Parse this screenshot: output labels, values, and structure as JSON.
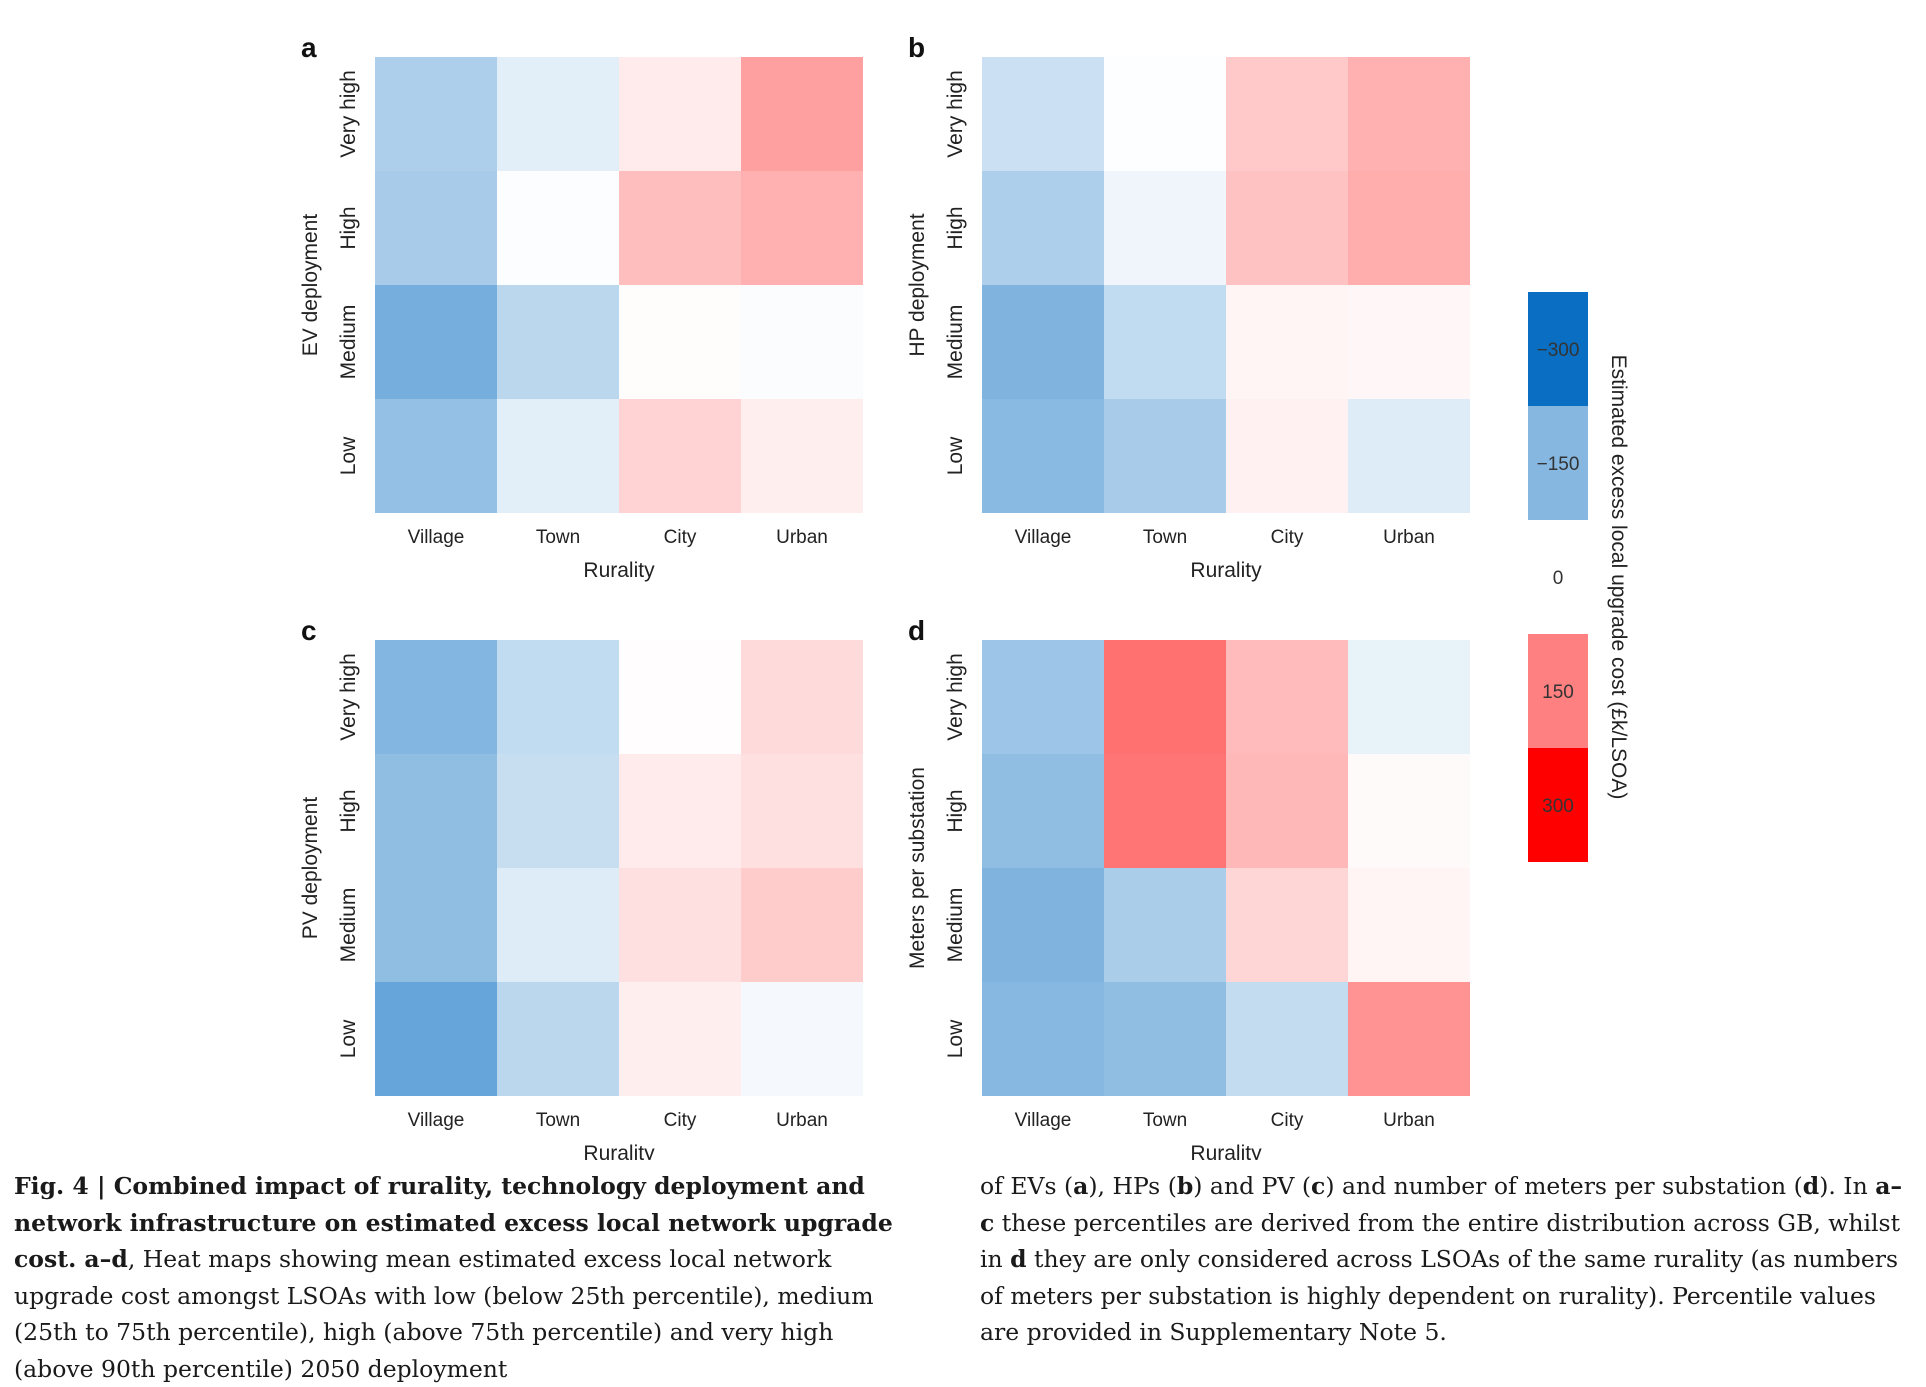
{
  "chart_data": [
    {
      "type": "heatmap",
      "panel_label": "a",
      "xlabel": "Rurality",
      "ylabel": "EV deployment",
      "x_categories": [
        "Village",
        "Town",
        "City",
        "Urban"
      ],
      "y_categories": [
        "Very high",
        "High",
        "Medium",
        "Low"
      ],
      "values": [
        [
          -125,
          -45,
          30,
          140
        ],
        [
          -135,
          -5,
          95,
          115
        ],
        [
          -210,
          -105,
          5,
          -8
        ],
        [
          -165,
          -45,
          65,
          25
        ]
      ]
    },
    {
      "type": "heatmap",
      "panel_label": "b",
      "xlabel": "Rurality",
      "ylabel": "HP deployment",
      "x_categories": [
        "Village",
        "Town",
        "City",
        "Urban"
      ],
      "y_categories": [
        "Very high",
        "High",
        "Medium",
        "Low"
      ],
      "values": [
        [
          -80,
          -3,
          80,
          115
        ],
        [
          -125,
          -25,
          90,
          120
        ],
        [
          -195,
          -95,
          15,
          12
        ],
        [
          -180,
          -135,
          20,
          -50
        ]
      ]
    },
    {
      "type": "heatmap",
      "panel_label": "c",
      "xlabel": "Rurality",
      "ylabel": "PV deployment",
      "x_categories": [
        "Village",
        "Town",
        "City",
        "Urban"
      ],
      "y_categories": [
        "Very high",
        "High",
        "Medium",
        "Low"
      ],
      "values": [
        [
          -190,
          -95,
          3,
          55
        ],
        [
          -170,
          -85,
          30,
          45
        ],
        [
          -170,
          -50,
          45,
          75
        ],
        [
          -235,
          -105,
          25,
          -15
        ]
      ]
    },
    {
      "type": "heatmap",
      "panel_label": "d",
      "xlabel": "Rurality",
      "ylabel": "Meters per substation",
      "x_categories": [
        "Village",
        "Town",
        "City",
        "Urban"
      ],
      "y_categories": [
        "Very high",
        "High",
        "Medium",
        "Low"
      ],
      "values": [
        [
          -150,
          210,
          100,
          -35
        ],
        [
          -170,
          205,
          105,
          8
        ],
        [
          -195,
          -130,
          60,
          15
        ],
        [
          -185,
          -170,
          -90,
          160
        ]
      ]
    }
  ],
  "colorbar": {
    "label": "Estimated excess local upgrade cost (£k/LSOA)",
    "range": [
      -375,
      375
    ],
    "ticks": [
      -300,
      -150,
      0,
      150,
      300
    ],
    "low_color": "#0a6fc2",
    "mid_color": "#ffffff",
    "high_color": "#ff0000"
  },
  "caption": {
    "fig_number": "Fig. 4",
    "separator": " | ",
    "bold_title": "Combined impact of rurality, technology deployment and network infrastructure on estimated excess local network upgrade cost. a–d",
    "left_text": ", Heat maps showing mean estimated excess local network upgrade cost amongst LSOAs with low (below 25th percentile), medium (25th to 75th percentile), high (above 75th percentile) and very high (above 90th percentile) 2050 deployment",
    "r1": "of EVs (",
    "r2": "a",
    "r3": "), HPs (",
    "r4": "b",
    "r5": ") and PV (",
    "r6": "c",
    "r7": ") and number of meters per substation (",
    "r8": "d",
    "r9": "). In ",
    "r10": "a–c",
    "r11": " these percentiles are derived from the entire distribution across GB, whilst in ",
    "r12": "d",
    "r13": " they are only considered across LSOAs of the same rurality (as numbers of meters per substation is highly dependent on rurality). Percentile values are provided in Supplementary Note 5."
  }
}
